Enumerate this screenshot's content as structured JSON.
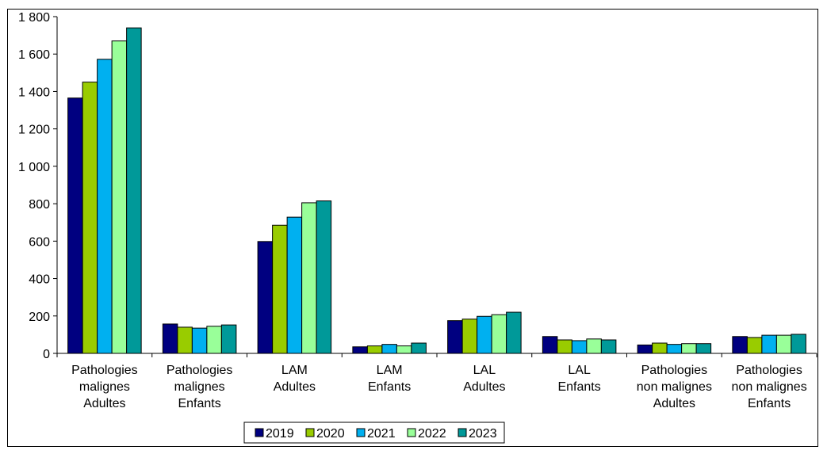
{
  "chart_data": {
    "type": "bar",
    "categories": [
      [
        "Pathologies",
        "malignes",
        "Adultes"
      ],
      [
        "Pathologies",
        "malignes",
        "Enfants"
      ],
      [
        "LAM",
        "Adultes"
      ],
      [
        "LAM",
        "Enfants"
      ],
      [
        "LAL",
        "Adultes"
      ],
      [
        "LAL",
        "Enfants"
      ],
      [
        "Pathologies",
        "non malignes",
        "Adultes"
      ],
      [
        "Pathologies",
        "non malignes",
        "Enfants"
      ]
    ],
    "series": [
      {
        "name": "2019",
        "color": "#000080",
        "values": [
          1365,
          157,
          598,
          35,
          175,
          90,
          45,
          90
        ]
      },
      {
        "name": "2020",
        "color": "#99CC00",
        "values": [
          1450,
          140,
          685,
          40,
          183,
          72,
          55,
          85
        ]
      },
      {
        "name": "2021",
        "color": "#00B0F0",
        "values": [
          1572,
          135,
          728,
          48,
          198,
          68,
          48,
          97
        ]
      },
      {
        "name": "2022",
        "color": "#99FF99",
        "values": [
          1670,
          145,
          805,
          40,
          207,
          77,
          52,
          97
        ]
      },
      {
        "name": "2023",
        "color": "#009999",
        "values": [
          1740,
          152,
          815,
          55,
          220,
          72,
          52,
          102
        ]
      }
    ],
    "yticks": [
      "0",
      "200",
      "400",
      "600",
      "800",
      "1 000",
      "1 200",
      "1 400",
      "1 600",
      "1 800"
    ],
    "ylim": [
      0,
      1800
    ],
    "grid": false,
    "legend_position": "bottom",
    "title": "",
    "xlabel": "",
    "ylabel": ""
  }
}
